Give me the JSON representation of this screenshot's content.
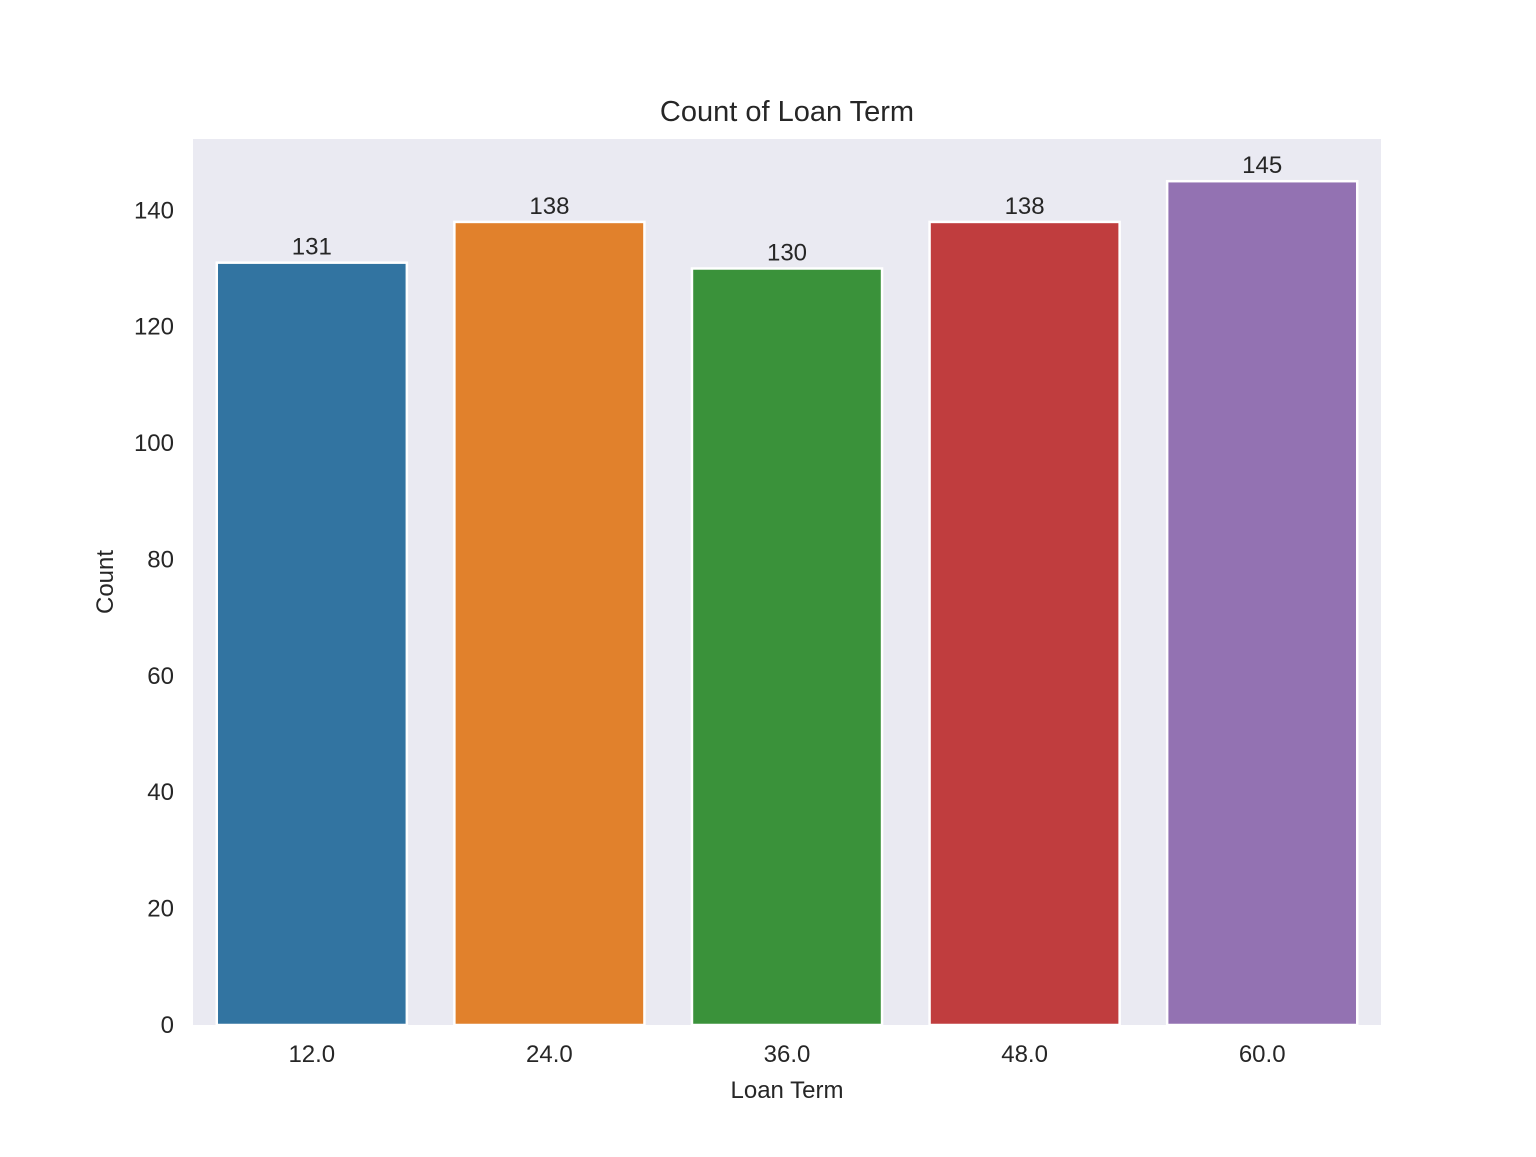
{
  "chart_data": {
    "type": "bar",
    "title": "Count of Loan Term",
    "xlabel": "Loan Term",
    "ylabel": "Count",
    "categories": [
      "12.0",
      "24.0",
      "36.0",
      "48.0",
      "60.0"
    ],
    "values": [
      131,
      138,
      130,
      138,
      145
    ],
    "value_labels": [
      "131",
      "138",
      "130",
      "138",
      "145"
    ],
    "colors": [
      "#3274a1",
      "#e1812c",
      "#3a923a",
      "#c03d3e",
      "#9372b2"
    ],
    "ylim": [
      0,
      152.25
    ],
    "yticks": [
      0,
      20,
      40,
      60,
      80,
      100,
      120,
      140
    ],
    "ytick_labels": [
      "0",
      "20",
      "40",
      "60",
      "80",
      "100",
      "120",
      "140"
    ],
    "grid": false,
    "background": "#eaeaf2",
    "legend": "none"
  }
}
